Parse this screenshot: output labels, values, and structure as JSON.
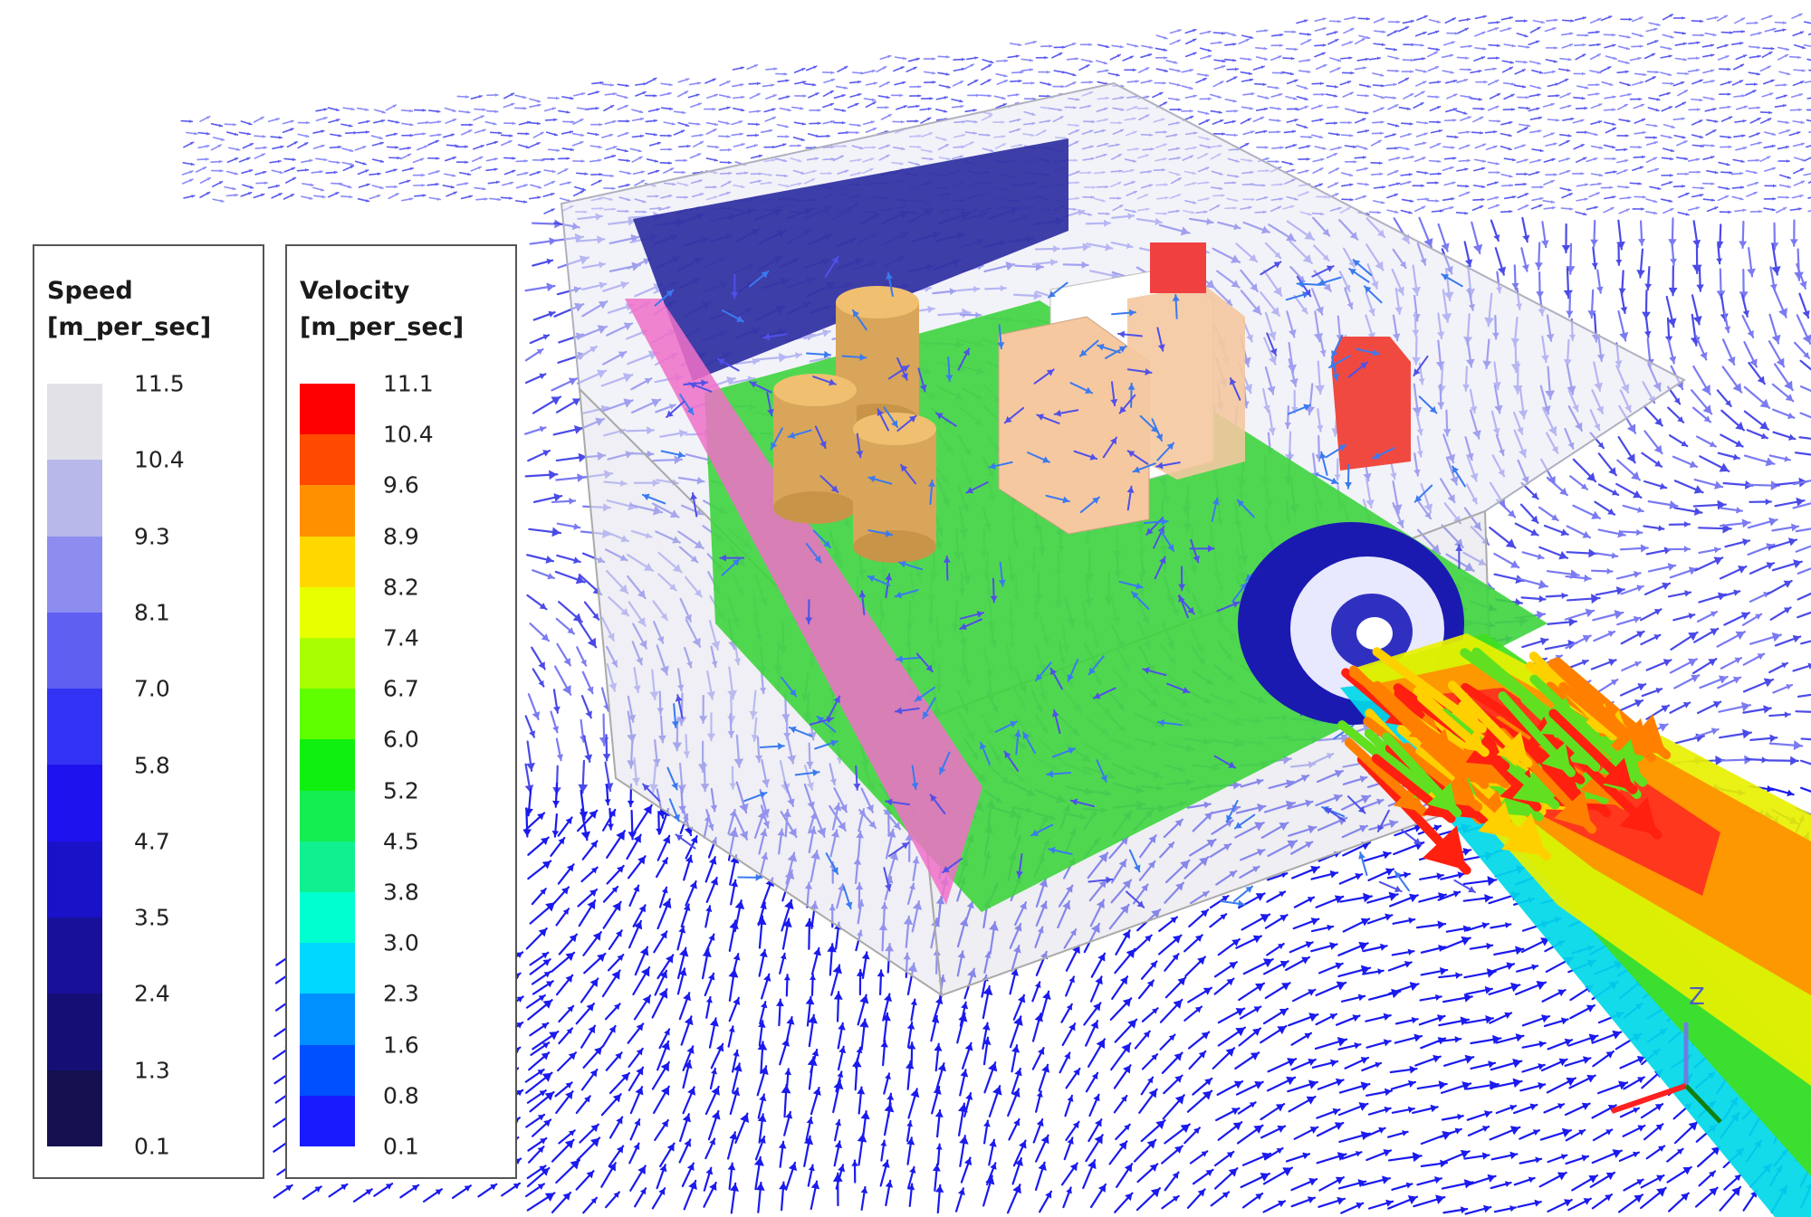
{
  "legends": {
    "speed": {
      "title": "Speed",
      "unit": "[m_per_sec]",
      "ticks": [
        "11.5",
        "10.4",
        "9.3",
        "8.1",
        "7.0",
        "5.8",
        "4.7",
        "3.5",
        "2.4",
        "1.3",
        "0.1"
      ],
      "colors": [
        "#e2e2e6",
        "#b8b8ea",
        "#8d8df0",
        "#5f5ff2",
        "#3333f5",
        "#1e12ee",
        "#1a12c8",
        "#18109a",
        "#150f75",
        "#15104f"
      ]
    },
    "velocity": {
      "title": "Velocity",
      "unit": "[m_per_sec]",
      "ticks": [
        "11.1",
        "10.4",
        "9.6",
        "8.9",
        "8.2",
        "7.4",
        "6.7",
        "6.0",
        "5.2",
        "4.5",
        "3.8",
        "3.0",
        "2.3",
        "1.6",
        "0.8",
        "0.1"
      ],
      "colors": [
        "#ff0000",
        "#ff4a00",
        "#ff9000",
        "#ffd800",
        "#e8ff00",
        "#a8ff00",
        "#60ff00",
        "#10f010",
        "#14ee50",
        "#10f090",
        "#00ffd0",
        "#00d8ff",
        "#0090ff",
        "#0050ff",
        "#1a1aff"
      ]
    }
  },
  "axis_triad": {
    "z_label": "Z",
    "colors": {
      "x": "#ff2020",
      "y": "#108010",
      "z": "#6a80e0"
    }
  }
}
